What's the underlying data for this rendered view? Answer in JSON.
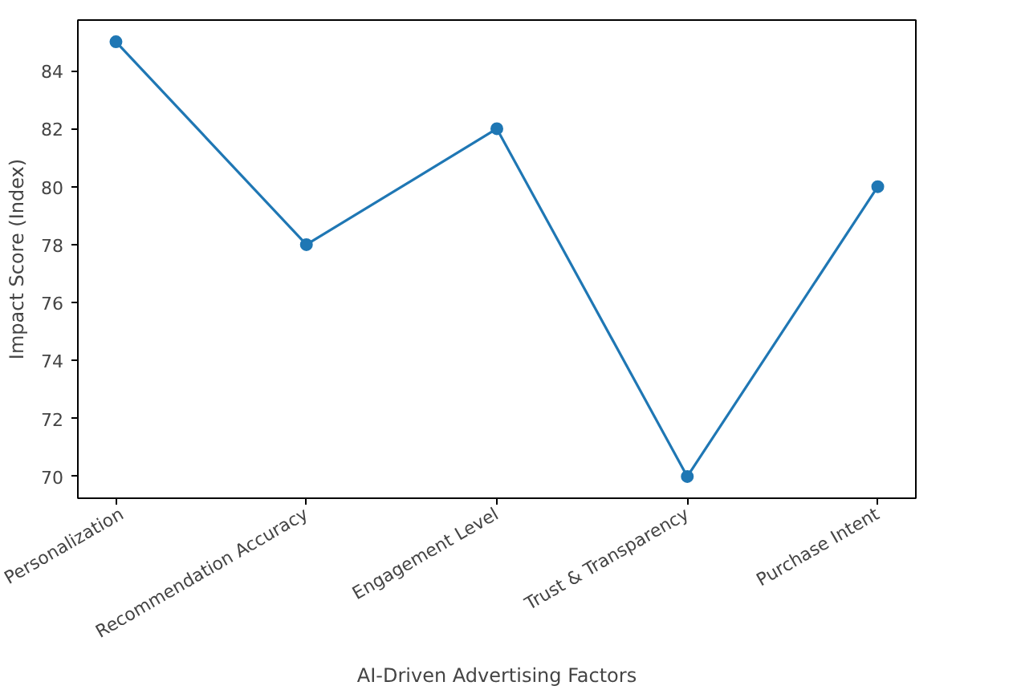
{
  "chart_data": {
    "type": "line",
    "xlabel": "AI-Driven Advertising Factors",
    "ylabel": "Impact Score (Index)",
    "categories": [
      "Personalization",
      "Recommendation Accuracy",
      "Engagement Level",
      "Trust & Transparency",
      "Purchase Intent"
    ],
    "series": [
      {
        "color": "#1f77b4",
        "values": [
          85,
          78,
          82,
          70,
          80
        ]
      }
    ],
    "ylim": [
      69.25,
      85.75
    ],
    "yticks": [
      70,
      72,
      74,
      76,
      78,
      80,
      82,
      84
    ],
    "grid": false,
    "marker": "circle",
    "line_style": "solid"
  }
}
